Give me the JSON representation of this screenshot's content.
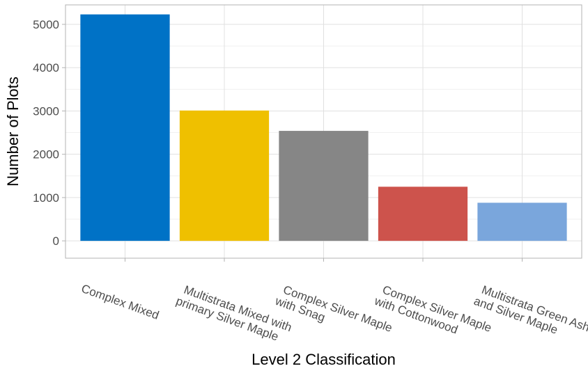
{
  "chart_data": {
    "type": "bar",
    "title": "",
    "xlabel": "Level 2 Classification",
    "ylabel": "Number of Plots",
    "categories": [
      [
        "Complex Mixed"
      ],
      [
        "Multistrata Mixed with",
        "primary Silver Maple"
      ],
      [
        "Complex Silver Maple",
        "with Snag"
      ],
      [
        "Complex Silver Maple",
        "with Cottonwood"
      ],
      [
        "Multistrata Green Ash",
        "and Silver Maple"
      ]
    ],
    "values": [
      5230,
      3010,
      2540,
      1250,
      880
    ],
    "colors": [
      "#0072C6",
      "#EFC000",
      "#868686",
      "#CD534C",
      "#7AA6DC"
    ],
    "ylim": [
      -400,
      5450
    ],
    "yticks": [
      0,
      1000,
      2000,
      3000,
      4000,
      5000
    ],
    "grid": true,
    "legend": "none"
  }
}
